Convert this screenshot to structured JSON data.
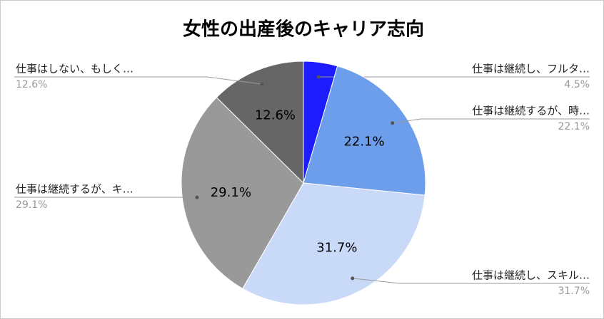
{
  "chart_data": {
    "type": "pie",
    "title": "女性の出産後のキャリア志向",
    "categories": [
      "仕事は継続し、フルタ…",
      "仕事は継続するが、時…",
      "仕事は継続し、スキル…",
      "仕事は継続するが、キ…",
      "仕事はしない、もしく…"
    ],
    "values": [
      4.5,
      22.1,
      31.7,
      29.1,
      12.6
    ],
    "value_labels": [
      "4.5%",
      "22.1%",
      "31.7%",
      "29.1%",
      "12.6%"
    ],
    "colors": [
      "#1c1cff",
      "#6d9eeb",
      "#c9daf8",
      "#999999",
      "#666666"
    ]
  }
}
